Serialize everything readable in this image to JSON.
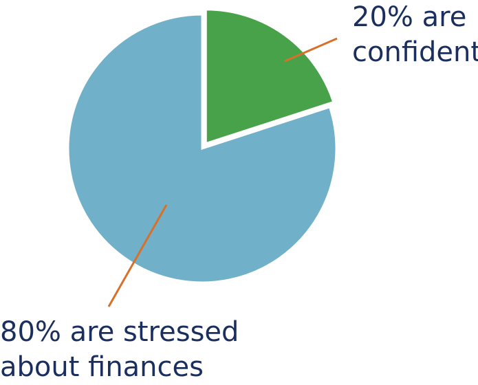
{
  "chart_data": {
    "type": "pie",
    "slices": [
      {
        "value": 20,
        "label_lines": [
          "20% are",
          "confident"
        ],
        "color": "#48a24a",
        "exploded": true
      },
      {
        "value": 80,
        "label_lines": [
          "80% are stressed",
          "about finances"
        ],
        "color": "#70b0c8",
        "exploded": false
      }
    ],
    "leader_line_color": "#d8702a",
    "label_color": "#1b2f5e"
  }
}
